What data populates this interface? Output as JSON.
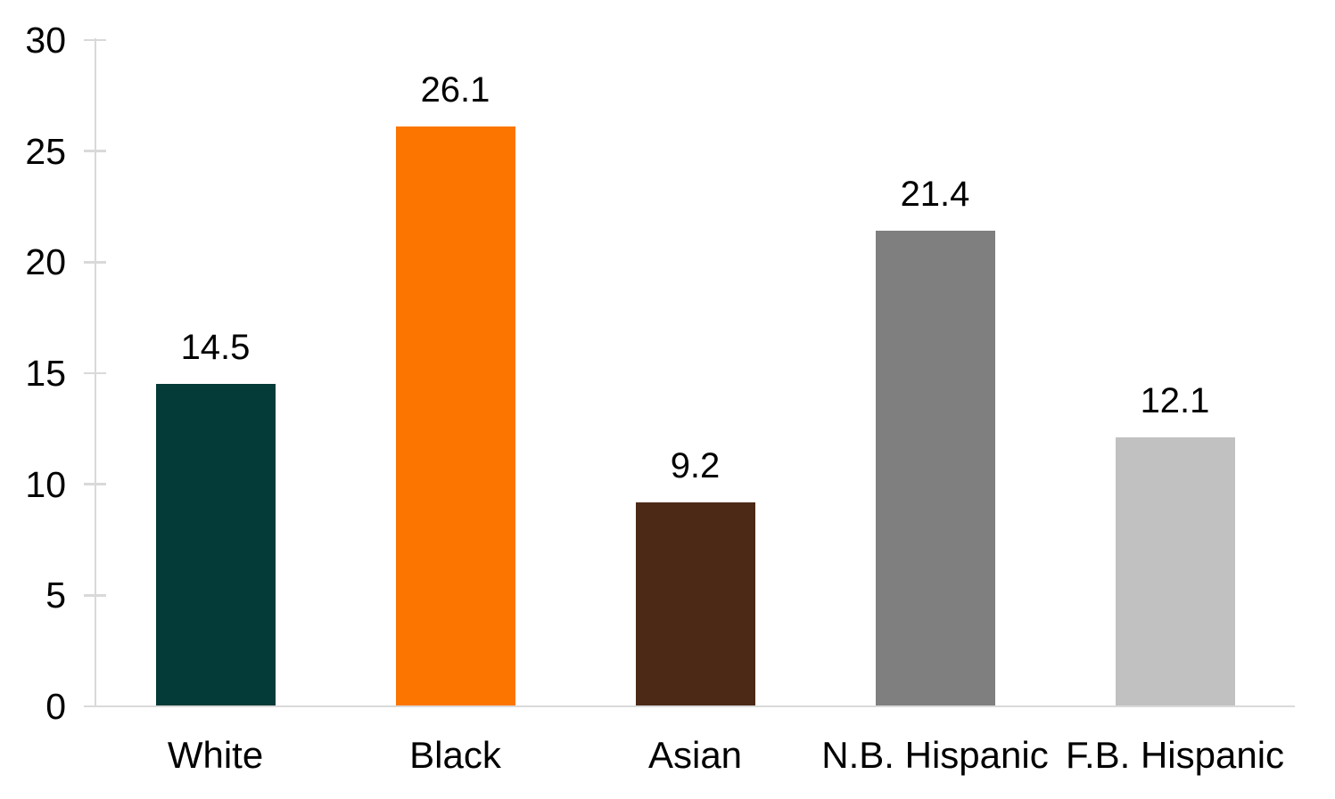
{
  "chart_data": {
    "type": "bar",
    "title": "",
    "xlabel": "",
    "ylabel": "",
    "categories": [
      "White",
      "Black",
      "Asian",
      "N.B. Hispanic",
      "F.B. Hispanic"
    ],
    "values": [
      14.5,
      26.1,
      9.2,
      21.4,
      12.1
    ],
    "value_labels": [
      "14.5",
      "26.1",
      "9.2",
      "21.4",
      "12.1"
    ],
    "bar_colors": [
      "#043A38",
      "#FC7500",
      "#4C2917",
      "#7F7F7F",
      "#C1C1C1"
    ],
    "ylim": [
      0,
      30
    ],
    "ytick_step": 5,
    "ytick_labels": [
      "0",
      "5",
      "10",
      "15",
      "20",
      "25",
      "30"
    ],
    "grid": false,
    "legend": "none",
    "axis_color": "#D9D9D9",
    "text_color": "#000000",
    "background_color": "#FFFFFF"
  }
}
